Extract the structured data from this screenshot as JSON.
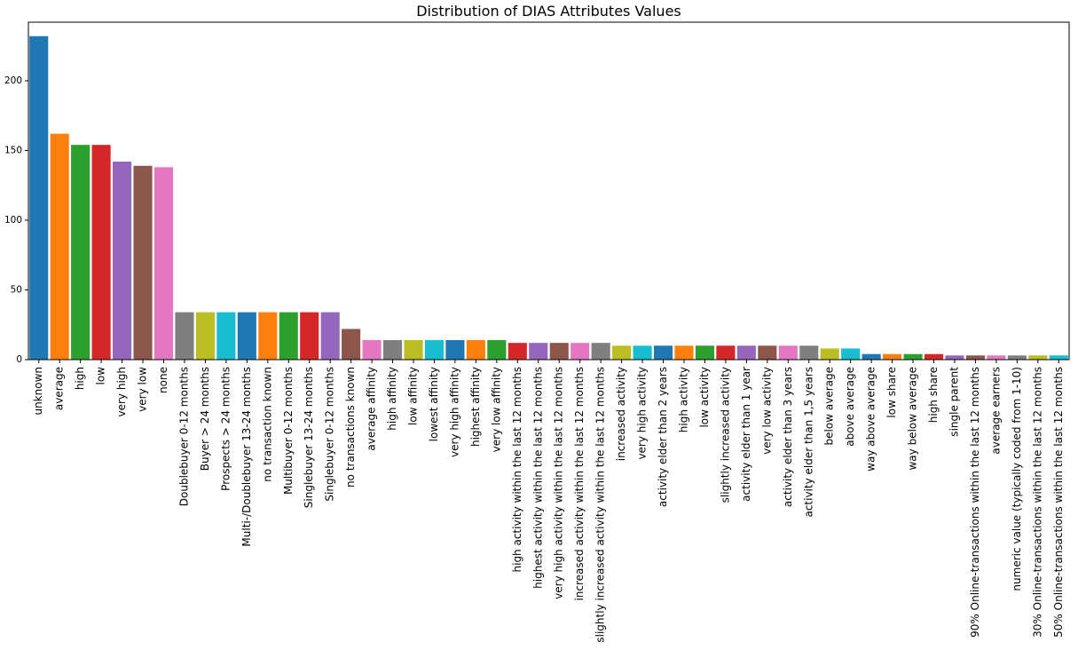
{
  "chart_data": {
    "type": "bar",
    "title": "Distribution of DIAS Attributes Values",
    "xlabel": "",
    "ylabel": "",
    "ylim": [
      0,
      242
    ],
    "yticks": [
      0,
      50,
      100,
      150,
      200
    ],
    "grid": false,
    "categories": [
      "unknown",
      "average",
      "high",
      "low",
      "very high",
      "very low",
      "none",
      "Doublebuyer 0-12 months",
      "Buyer > 24 months",
      "Prospects > 24 months",
      "Multi-/Doublebuyer 13-24 months",
      "no transaction known",
      "Multibuyer 0-12 months",
      "Singlebuyer 13-24 months",
      "Singlebuyer 0-12 months",
      "no transactions known",
      "average affinity",
      "high affinity",
      "low affinity",
      "lowest affinity",
      "very high affinity",
      "highest affinity",
      "very low affinity",
      "high activity within the last 12 months",
      "highest activity within the last 12 months",
      "very high activity within the last 12 months",
      "increased activity within the last 12 months",
      "slightly increased activity within the last 12 months",
      "increased activity",
      "very high activity",
      "activity elder than 2 years",
      "high activity",
      "low activity",
      "slightly increased activity",
      "activity elder than 1 year",
      "very low activity",
      "activity elder than 3 years",
      "activity elder than 1,5 years",
      "below average",
      "above average",
      "way above average",
      "low share",
      "way below average",
      "high share",
      "single parent",
      "90% Online-transactions within the last 12 months",
      "average earners",
      "numeric value (typically coded from 1-10)",
      "30% Online-transactions within the last 12 months",
      "50% Online-transactions within the last 12 months"
    ],
    "values": [
      232,
      162,
      154,
      154,
      142,
      139,
      138,
      34,
      34,
      34,
      34,
      34,
      34,
      34,
      34,
      22,
      14,
      14,
      14,
      14,
      14,
      14,
      14,
      12,
      12,
      12,
      12,
      12,
      10,
      10,
      10,
      10,
      10,
      10,
      10,
      10,
      10,
      10,
      8,
      8,
      4,
      4,
      4,
      4,
      3,
      3,
      3,
      3,
      3,
      3
    ],
    "colors": [
      "#1f77b4",
      "#ff7f0e",
      "#2ca02c",
      "#d62728",
      "#9467bd",
      "#8c564b",
      "#e377c2",
      "#7f7f7f",
      "#bcbd22",
      "#17becf"
    ]
  }
}
